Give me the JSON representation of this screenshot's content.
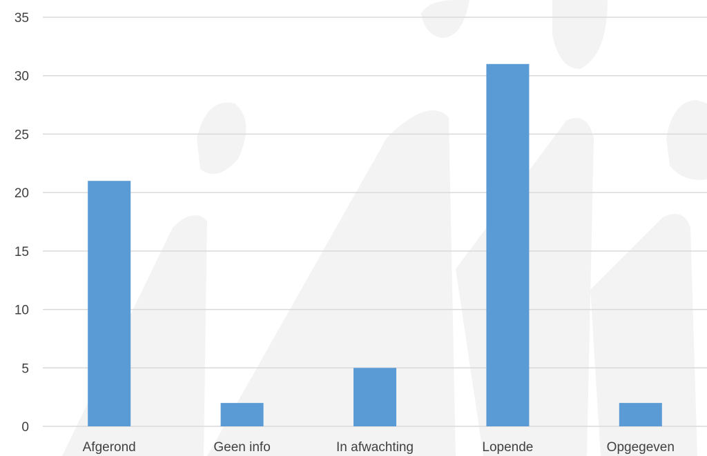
{
  "chart_data": {
    "type": "bar",
    "title": "",
    "xlabel": "",
    "ylabel": "",
    "categories": [
      "Afgerond",
      "Geen info",
      "In afwachting",
      "Lopende",
      "Opgegeven"
    ],
    "values": [
      21,
      2,
      5,
      31,
      2
    ],
    "ylim": [
      0,
      35
    ],
    "yticks": [
      0,
      5,
      10,
      15,
      20,
      25,
      30,
      35
    ],
    "grid": "horizontal",
    "legend": "none",
    "bar_color": "#5b9bd5",
    "grid_color": "#d9d9d9"
  }
}
